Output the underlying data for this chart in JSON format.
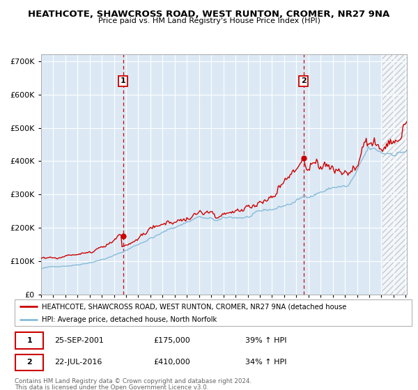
{
  "title": "HEATHCOTE, SHAWCROSS ROAD, WEST RUNTON, CROMER, NR27 9NA",
  "subtitle": "Price paid vs. HM Land Registry's House Price Index (HPI)",
  "legend_line1": "HEATHCOTE, SHAWCROSS ROAD, WEST RUNTON, CROMER, NR27 9NA (detached house",
  "legend_line2": "HPI: Average price, detached house, North Norfolk",
  "footnote1": "Contains HM Land Registry data © Crown copyright and database right 2024.",
  "footnote2": "This data is licensed under the Open Government Licence v3.0.",
  "transaction1_date": "25-SEP-2001",
  "transaction1_price": "£175,000",
  "transaction1_hpi": "39% ↑ HPI",
  "transaction2_date": "22-JUL-2016",
  "transaction2_price": "£410,000",
  "transaction2_hpi": "34% ↑ HPI",
  "background_color": "#dce9f5",
  "red_line_color": "#cc0000",
  "blue_line_color": "#88bbd8",
  "grid_color": "#ffffff",
  "ylim": [
    0,
    720000
  ],
  "yticks": [
    0,
    100000,
    200000,
    300000,
    400000,
    500000,
    600000,
    700000
  ],
  "xlim_start": 1995.0,
  "xlim_end": 2025.08,
  "hatch_start_year": 2023.08
}
